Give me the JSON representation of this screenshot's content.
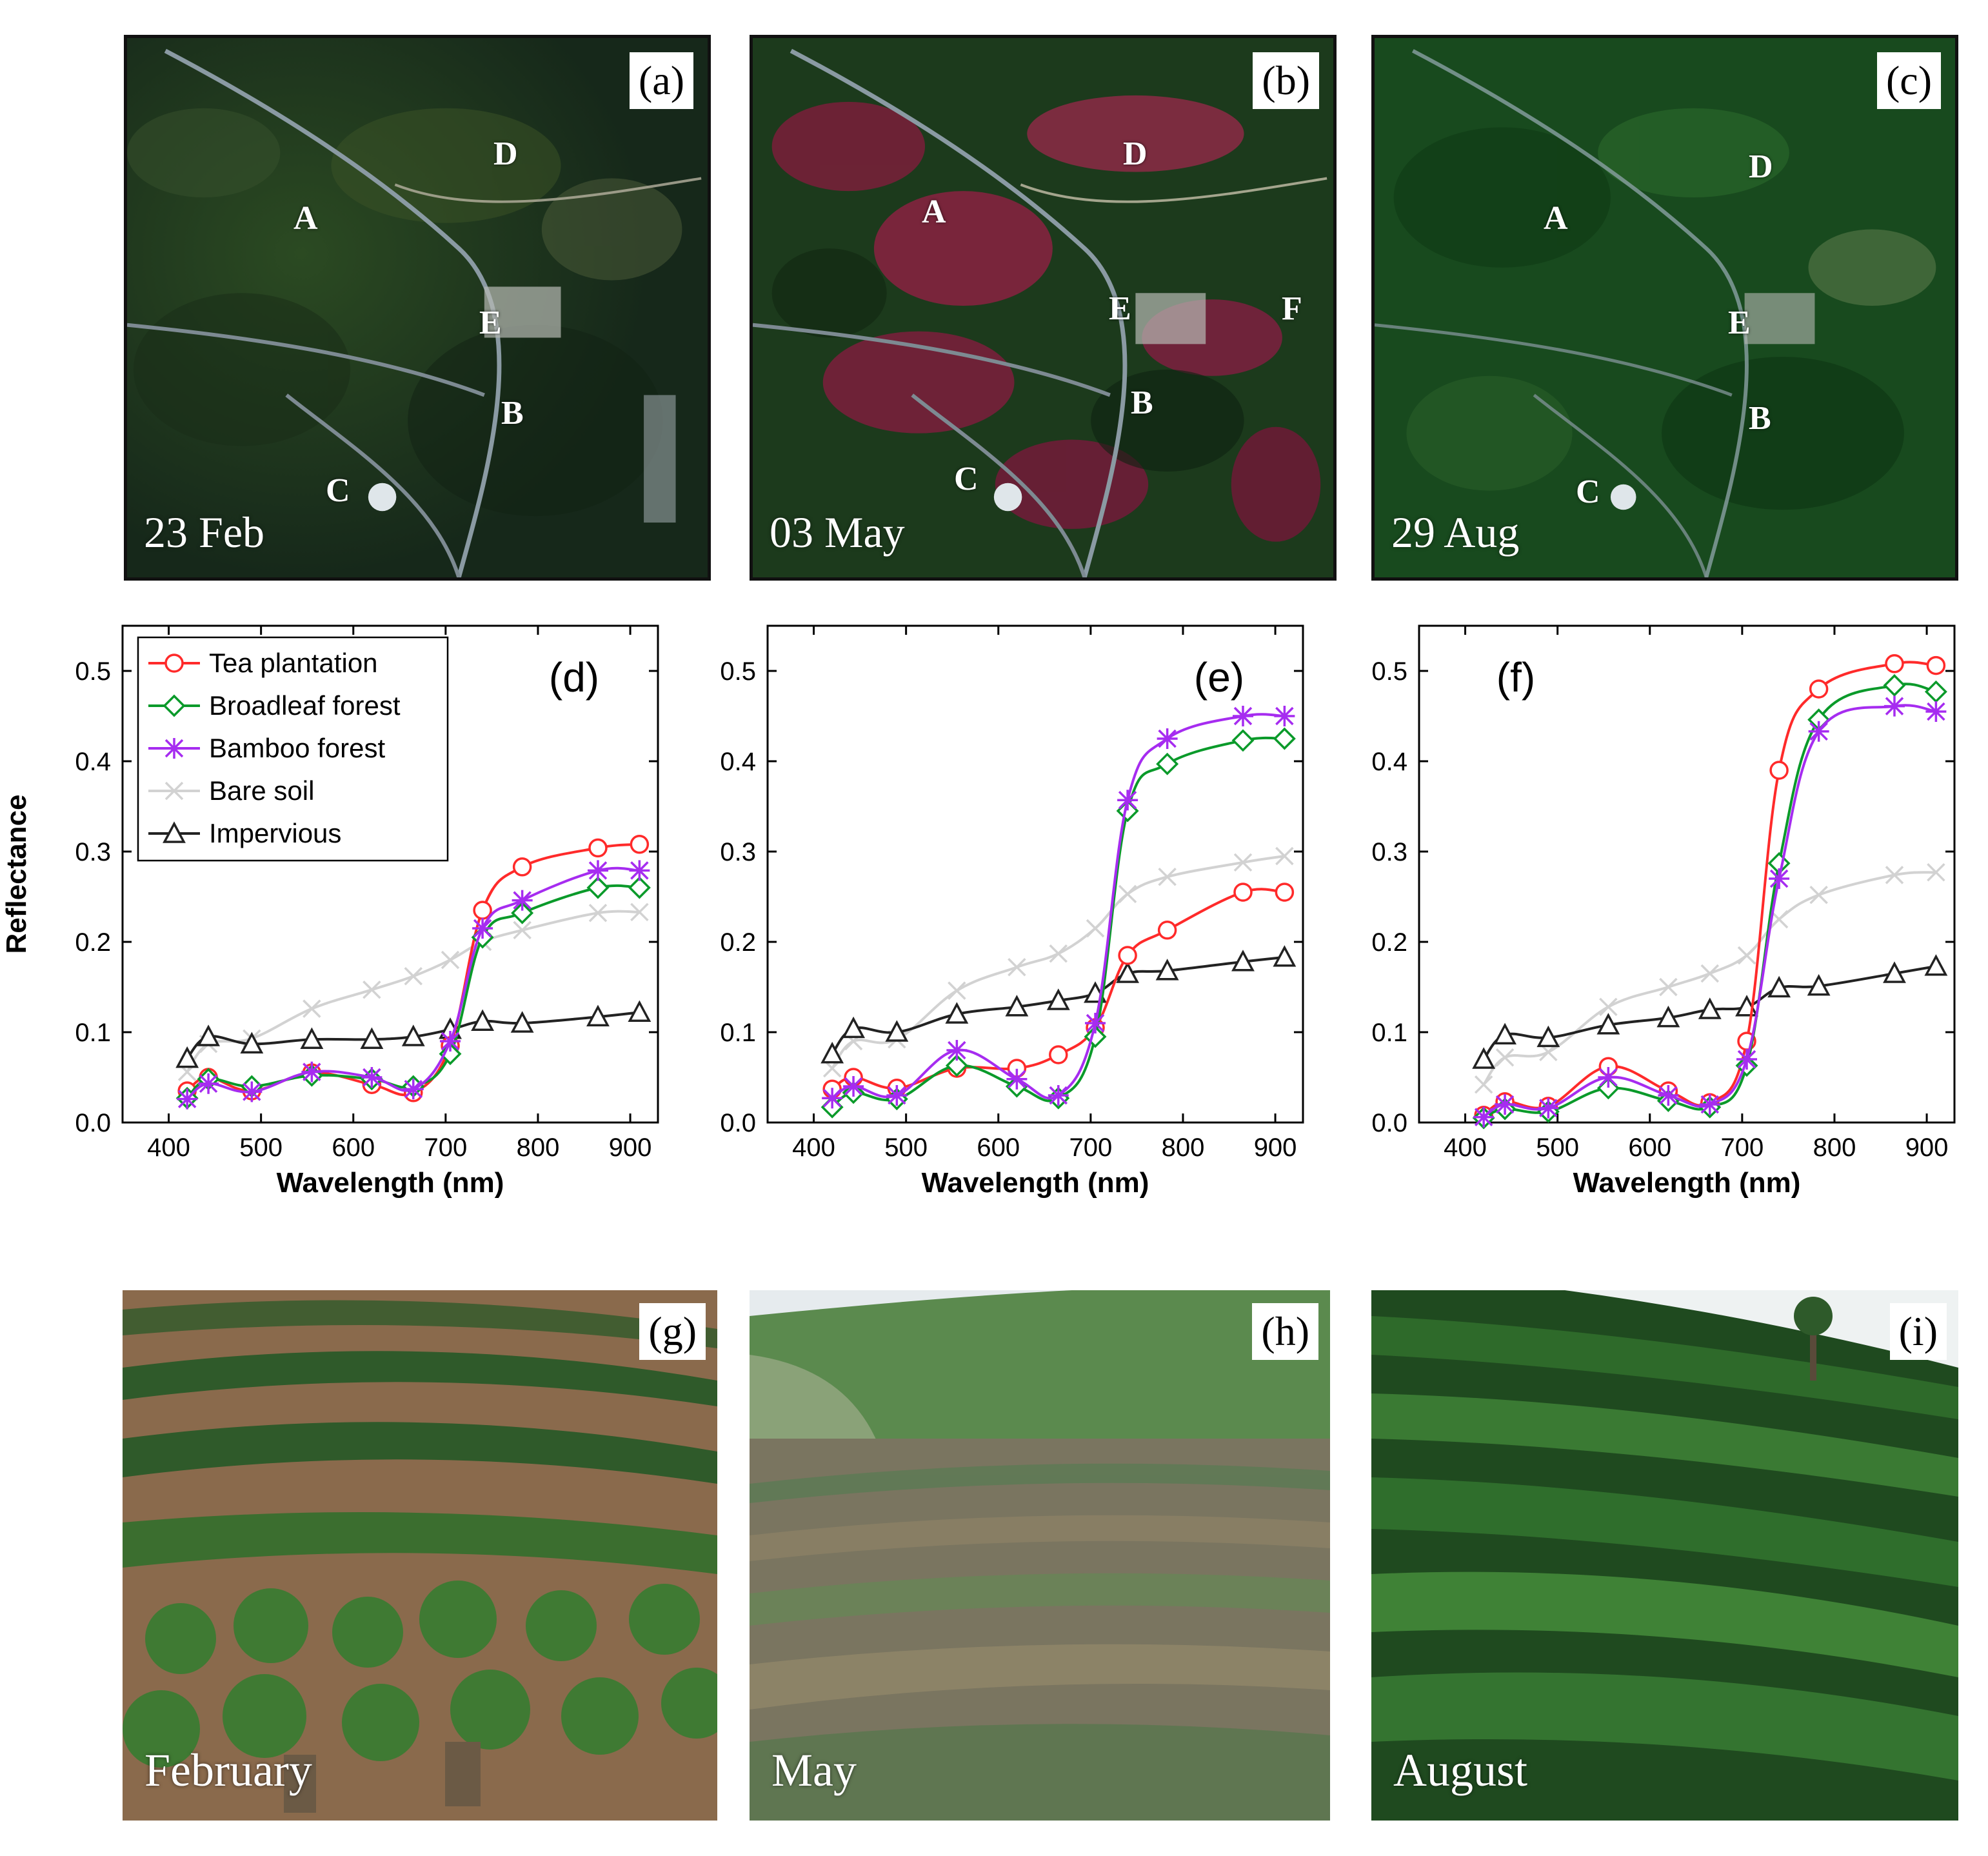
{
  "satellite": [
    {
      "tag": "(a)",
      "date": "23 Feb",
      "sites": [
        {
          "id": "A",
          "label": "A"
        },
        {
          "id": "B",
          "label": "B"
        },
        {
          "id": "C",
          "label": "C"
        },
        {
          "id": "D",
          "label": "D"
        },
        {
          "id": "E",
          "label": "E"
        }
      ]
    },
    {
      "tag": "(b)",
      "date": "03 May",
      "sites": [
        {
          "id": "A",
          "label": "A"
        },
        {
          "id": "B",
          "label": "B"
        },
        {
          "id": "C",
          "label": "C"
        },
        {
          "id": "D",
          "label": "D"
        },
        {
          "id": "E",
          "label": "E"
        },
        {
          "id": "F",
          "label": "F"
        }
      ]
    },
    {
      "tag": "(c)",
      "date": "29 Aug",
      "sites": [
        {
          "id": "A",
          "label": "A"
        },
        {
          "id": "B",
          "label": "B"
        },
        {
          "id": "C",
          "label": "C"
        },
        {
          "id": "D",
          "label": "D"
        },
        {
          "id": "E",
          "label": "E"
        }
      ]
    }
  ],
  "photos": [
    {
      "tag": "(g)",
      "month": "February"
    },
    {
      "tag": "(h)",
      "month": "May"
    },
    {
      "tag": "(i)",
      "month": "August"
    }
  ],
  "colors": {
    "tea": "#ff2a2a",
    "broadleaf": "#0a9a2a",
    "bamboo": "#a62cf0",
    "bare": "#d2d2d2",
    "impervious": "#222222"
  },
  "chart_data": [
    {
      "type": "line",
      "panel": "(d)",
      "xlabel": "Wavelength (nm)",
      "ylabel": "Reflectance",
      "xlim": [
        350,
        930
      ],
      "ylim": [
        0.0,
        0.55
      ],
      "xticks": [
        400,
        500,
        600,
        700,
        800,
        900
      ],
      "yticks": [
        0.0,
        0.1,
        0.2,
        0.3,
        0.4,
        0.5
      ],
      "ytick_labels": [
        "0.0",
        "0.1",
        "0.2",
        "0.3",
        "0.4",
        "0.5"
      ],
      "legend_position": "top-left",
      "x": [
        420,
        443,
        490,
        555,
        620,
        665,
        705,
        740,
        783,
        865,
        910
      ],
      "series": [
        {
          "name": "Tea plantation",
          "key": "tea",
          "marker": "circle",
          "values": [
            0.035,
            0.05,
            0.035,
            0.055,
            0.042,
            0.033,
            0.085,
            0.235,
            0.283,
            0.304,
            0.308
          ]
        },
        {
          "name": "Broadleaf forest",
          "key": "broadleaf",
          "marker": "diamond",
          "values": [
            0.027,
            0.048,
            0.04,
            0.052,
            0.048,
            0.04,
            0.076,
            0.205,
            0.232,
            0.26,
            0.26
          ]
        },
        {
          "name": "Bamboo forest",
          "key": "bamboo",
          "marker": "asterisk",
          "values": [
            0.026,
            0.043,
            0.034,
            0.056,
            0.05,
            0.037,
            0.09,
            0.215,
            0.246,
            0.279,
            0.279
          ]
        },
        {
          "name": "Bare soil",
          "key": "bare",
          "marker": "x",
          "values": [
            0.056,
            0.087,
            0.093,
            0.126,
            0.147,
            0.162,
            0.18,
            0.2,
            0.213,
            0.232,
            0.233
          ]
        },
        {
          "name": "Impervious",
          "key": "impervious",
          "marker": "triangle",
          "values": [
            0.071,
            0.095,
            0.087,
            0.092,
            0.092,
            0.095,
            0.103,
            0.112,
            0.11,
            0.117,
            0.122
          ]
        }
      ]
    },
    {
      "type": "line",
      "panel": "(e)",
      "xlabel": "Wavelength (nm)",
      "ylabel": "",
      "xlim": [
        350,
        930
      ],
      "ylim": [
        0.0,
        0.55
      ],
      "xticks": [
        400,
        500,
        600,
        700,
        800,
        900
      ],
      "yticks": [
        0.0,
        0.1,
        0.2,
        0.3,
        0.4,
        0.5
      ],
      "ytick_labels": [
        "0.0",
        "0.1",
        "0.2",
        "0.3",
        "0.4",
        "0.5"
      ],
      "legend_position": "none",
      "x": [
        420,
        443,
        490,
        555,
        620,
        665,
        705,
        740,
        783,
        865,
        910
      ],
      "series": [
        {
          "name": "Tea plantation",
          "key": "tea",
          "marker": "circle",
          "values": [
            0.037,
            0.05,
            0.038,
            0.06,
            0.06,
            0.075,
            0.105,
            0.185,
            0.213,
            0.255,
            0.255
          ]
        },
        {
          "name": "Broadleaf forest",
          "key": "broadleaf",
          "marker": "diamond",
          "values": [
            0.017,
            0.033,
            0.026,
            0.063,
            0.04,
            0.027,
            0.095,
            0.345,
            0.397,
            0.423,
            0.425
          ]
        },
        {
          "name": "Bamboo forest",
          "key": "bamboo",
          "marker": "asterisk",
          "values": [
            0.027,
            0.04,
            0.03,
            0.08,
            0.048,
            0.03,
            0.11,
            0.357,
            0.425,
            0.45,
            0.45
          ]
        },
        {
          "name": "Bare soil",
          "key": "bare",
          "marker": "x",
          "values": [
            0.06,
            0.09,
            0.092,
            0.146,
            0.172,
            0.187,
            0.215,
            0.253,
            0.272,
            0.288,
            0.295
          ]
        },
        {
          "name": "Impervious",
          "key": "impervious",
          "marker": "triangle",
          "values": [
            0.076,
            0.104,
            0.1,
            0.12,
            0.128,
            0.135,
            0.143,
            0.165,
            0.168,
            0.178,
            0.183
          ]
        }
      ]
    },
    {
      "type": "line",
      "panel": "(f)",
      "xlabel": "Wavelength (nm)",
      "ylabel": "",
      "xlim": [
        350,
        930
      ],
      "ylim": [
        0.0,
        0.55
      ],
      "xticks": [
        400,
        500,
        600,
        700,
        800,
        900
      ],
      "yticks": [
        0.0,
        0.1,
        0.2,
        0.3,
        0.4,
        0.5
      ],
      "ytick_labels": [
        "0.0",
        "0.1",
        "0.2",
        "0.3",
        "0.4",
        "0.5"
      ],
      "legend_position": "none",
      "x": [
        420,
        443,
        490,
        555,
        620,
        665,
        705,
        740,
        783,
        865,
        910
      ],
      "series": [
        {
          "name": "Tea plantation",
          "key": "tea",
          "marker": "circle",
          "values": [
            0.008,
            0.023,
            0.018,
            0.062,
            0.035,
            0.022,
            0.09,
            0.39,
            0.48,
            0.508,
            0.506
          ]
        },
        {
          "name": "Broadleaf forest",
          "key": "broadleaf",
          "marker": "diamond",
          "values": [
            0.005,
            0.015,
            0.012,
            0.038,
            0.024,
            0.017,
            0.063,
            0.287,
            0.446,
            0.484,
            0.477
          ]
        },
        {
          "name": "Bamboo forest",
          "key": "bamboo",
          "marker": "asterisk",
          "values": [
            0.006,
            0.02,
            0.016,
            0.05,
            0.03,
            0.02,
            0.07,
            0.27,
            0.433,
            0.461,
            0.455
          ]
        },
        {
          "name": "Bare soil",
          "key": "bare",
          "marker": "x",
          "values": [
            0.042,
            0.072,
            0.078,
            0.128,
            0.15,
            0.165,
            0.185,
            0.225,
            0.252,
            0.274,
            0.277
          ]
        },
        {
          "name": "Impervious",
          "key": "impervious",
          "marker": "triangle",
          "values": [
            0.07,
            0.097,
            0.094,
            0.108,
            0.116,
            0.125,
            0.128,
            0.149,
            0.151,
            0.165,
            0.173
          ]
        }
      ]
    }
  ]
}
